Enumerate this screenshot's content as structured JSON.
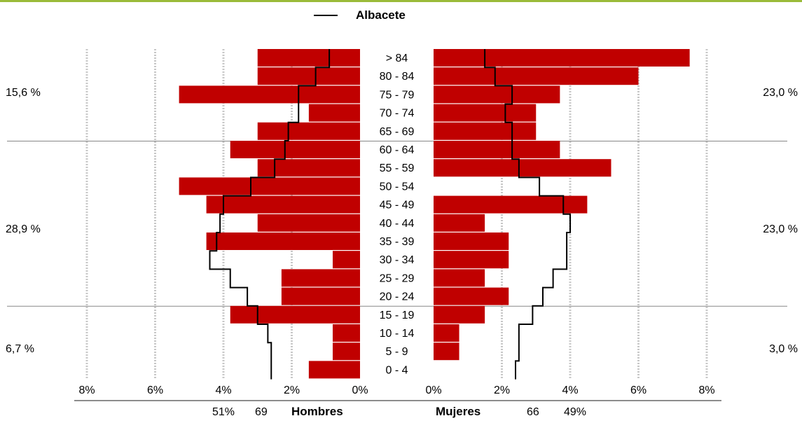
{
  "chart_data": {
    "type": "bar",
    "subtype": "population-pyramid",
    "legend": {
      "label": "Albacete",
      "placement": "top-center"
    },
    "age_groups": [
      "> 84",
      "80 - 84",
      "75 - 79",
      "70 - 74",
      "65 - 69",
      "60 - 64",
      "55 - 59",
      "50 - 54",
      "45 - 49",
      "40 - 44",
      "35 - 39",
      "30 - 34",
      "25 - 29",
      "20 - 24",
      "15 - 19",
      "10 - 14",
      "5 - 9",
      "0 - 4"
    ],
    "series": [
      {
        "name": "Hombres",
        "side": "left",
        "values": [
          3.0,
          3.0,
          5.3,
          1.5,
          3.0,
          3.8,
          3.0,
          5.3,
          4.5,
          3.0,
          4.5,
          0.8,
          2.3,
          2.3,
          3.8,
          0.8,
          0.8,
          1.5
        ]
      },
      {
        "name": "Mujeres",
        "side": "right",
        "values": [
          7.5,
          6.0,
          3.7,
          3.0,
          3.0,
          3.7,
          5.2,
          0.0,
          4.5,
          1.5,
          2.2,
          2.2,
          1.5,
          2.2,
          1.5,
          0.75,
          0.75,
          0.0
        ]
      },
      {
        "name": "Albacete",
        "role": "reference-line-left",
        "values": [
          0.9,
          1.3,
          1.8,
          1.8,
          2.1,
          2.2,
          2.5,
          3.2,
          4.0,
          4.1,
          4.2,
          4.4,
          3.8,
          3.3,
          3.0,
          2.7,
          2.6,
          2.6
        ]
      },
      {
        "name": "Albacete",
        "role": "reference-line-right",
        "values": [
          1.5,
          1.8,
          2.3,
          2.1,
          2.3,
          2.3,
          2.5,
          3.1,
          3.8,
          4.0,
          3.9,
          3.9,
          3.5,
          3.2,
          2.9,
          2.5,
          2.5,
          2.4
        ]
      }
    ],
    "xaxis": {
      "left_ticks": [
        "8%",
        "6%",
        "4%",
        "2%",
        "0%"
      ],
      "right_ticks": [
        "0%",
        "2%",
        "4%",
        "6%",
        "8%"
      ],
      "range": [
        0,
        8
      ]
    },
    "grid": true,
    "group_percentages": {
      "left": [
        "15,6 %",
        "28,9 %",
        "6,7  %"
      ],
      "right": [
        "23,0 %",
        "23,0 %",
        "3,0  %"
      ]
    },
    "footer": {
      "men_pct": "51%",
      "men_count": "69",
      "men_label": "Hombres",
      "women_label": "Mujeres",
      "women_count": "66",
      "women_pct": "49%"
    },
    "colors": {
      "bars": "#c00000",
      "line": "#000000",
      "grid": "#c8c8c8",
      "top_rule": "#9bbb3a"
    }
  }
}
